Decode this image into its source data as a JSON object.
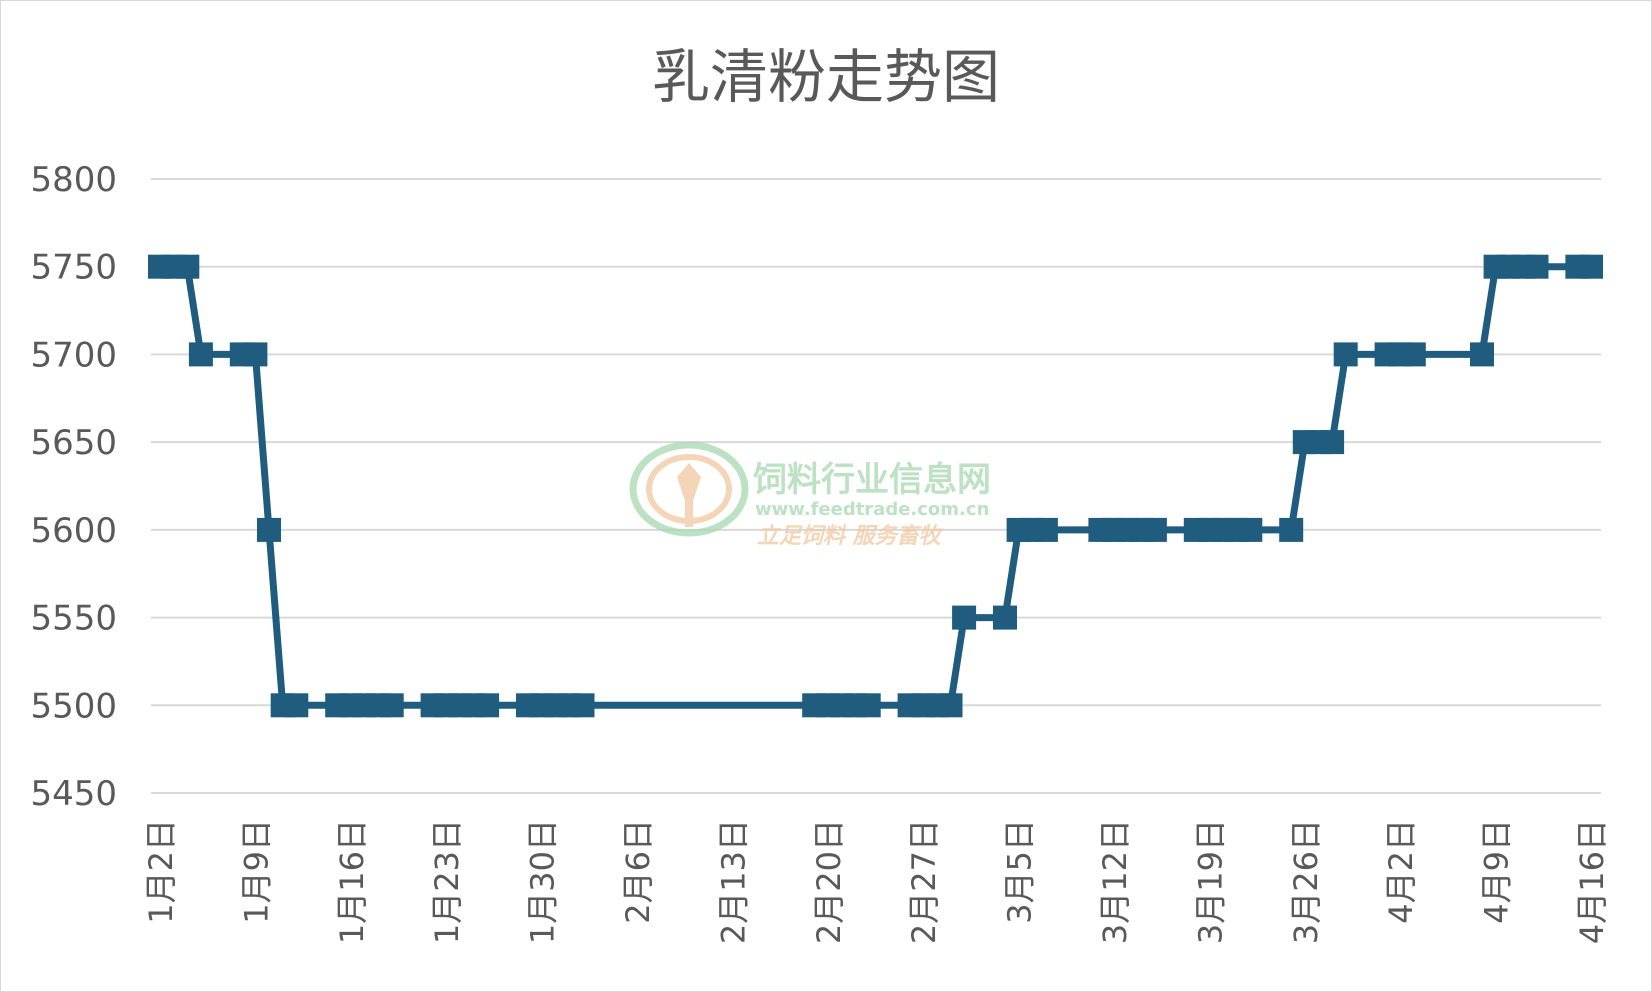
{
  "chart_data": {
    "type": "line",
    "title": "乳清粉走势图",
    "xlabel": "",
    "ylabel": "",
    "ylim": [
      5450,
      5800
    ],
    "yticks": [
      5450,
      5500,
      5550,
      5600,
      5650,
      5700,
      5750,
      5800
    ],
    "xticks": [
      "1月2日",
      "1月9日",
      "1月16日",
      "1月23日",
      "1月30日",
      "2月6日",
      "2月13日",
      "2月20日",
      "2月27日",
      "3月5日",
      "3月12日",
      "3月19日",
      "3月26日",
      "4月2日",
      "4月9日",
      "4月16日"
    ],
    "grid": true,
    "legend": "none",
    "series_color": "#1f5c7e",
    "series": [
      {
        "name": "",
        "points": [
          [
            "2024-01-02",
            5750
          ],
          [
            "2024-01-03",
            5750
          ],
          [
            "2024-01-04",
            5750
          ],
          [
            "2024-01-05",
            5700
          ],
          [
            "2024-01-08",
            5700
          ],
          [
            "2024-01-09",
            5700
          ],
          [
            "2024-01-10",
            5600
          ],
          [
            "2024-01-11",
            5500
          ],
          [
            "2024-01-12",
            5500
          ],
          [
            "2024-01-15",
            5500
          ],
          [
            "2024-01-16",
            5500
          ],
          [
            "2024-01-17",
            5500
          ],
          [
            "2024-01-18",
            5500
          ],
          [
            "2024-01-19",
            5500
          ],
          [
            "2024-01-22",
            5500
          ],
          [
            "2024-01-23",
            5500
          ],
          [
            "2024-01-24",
            5500
          ],
          [
            "2024-01-25",
            5500
          ],
          [
            "2024-01-26",
            5500
          ],
          [
            "2024-01-29",
            5500
          ],
          [
            "2024-01-30",
            5500
          ],
          [
            "2024-01-31",
            5500
          ],
          [
            "2024-02-01",
            5500
          ],
          [
            "2024-02-02",
            5500
          ],
          [
            "2024-02-19",
            5500
          ],
          [
            "2024-02-20",
            5500
          ],
          [
            "2024-02-21",
            5500
          ],
          [
            "2024-02-22",
            5500
          ],
          [
            "2024-02-23",
            5500
          ],
          [
            "2024-02-26",
            5500
          ],
          [
            "2024-02-27",
            5500
          ],
          [
            "2024-02-28",
            5500
          ],
          [
            "2024-02-29",
            5500
          ],
          [
            "2024-03-01",
            5550
          ],
          [
            "2024-03-04",
            5550
          ],
          [
            "2024-03-05",
            5600
          ],
          [
            "2024-03-06",
            5600
          ],
          [
            "2024-03-07",
            5600
          ],
          [
            "2024-03-11",
            5600
          ],
          [
            "2024-03-12",
            5600
          ],
          [
            "2024-03-13",
            5600
          ],
          [
            "2024-03-14",
            5600
          ],
          [
            "2024-03-15",
            5600
          ],
          [
            "2024-03-18",
            5600
          ],
          [
            "2024-03-19",
            5600
          ],
          [
            "2024-03-20",
            5600
          ],
          [
            "2024-03-21",
            5600
          ],
          [
            "2024-03-22",
            5600
          ],
          [
            "2024-03-25",
            5600
          ],
          [
            "2024-03-26",
            5650
          ],
          [
            "2024-03-27",
            5650
          ],
          [
            "2024-03-28",
            5650
          ],
          [
            "2024-03-29",
            5700
          ],
          [
            "2024-04-01",
            5700
          ],
          [
            "2024-04-02",
            5700
          ],
          [
            "2024-04-03",
            5700
          ],
          [
            "2024-04-08",
            5700
          ],
          [
            "2024-04-09",
            5750
          ],
          [
            "2024-04-10",
            5750
          ],
          [
            "2024-04-11",
            5750
          ],
          [
            "2024-04-12",
            5750
          ],
          [
            "2024-04-15",
            5750
          ],
          [
            "2024-04-16",
            5750
          ]
        ]
      }
    ]
  },
  "watermark": {
    "name_cn": "饲料行业信息网",
    "url": "www.feedtrade.com.cn",
    "slogan": "立足饲料  服务畜牧",
    "color_green": "#a8d9b0",
    "color_orange": "#f2c8a0"
  }
}
